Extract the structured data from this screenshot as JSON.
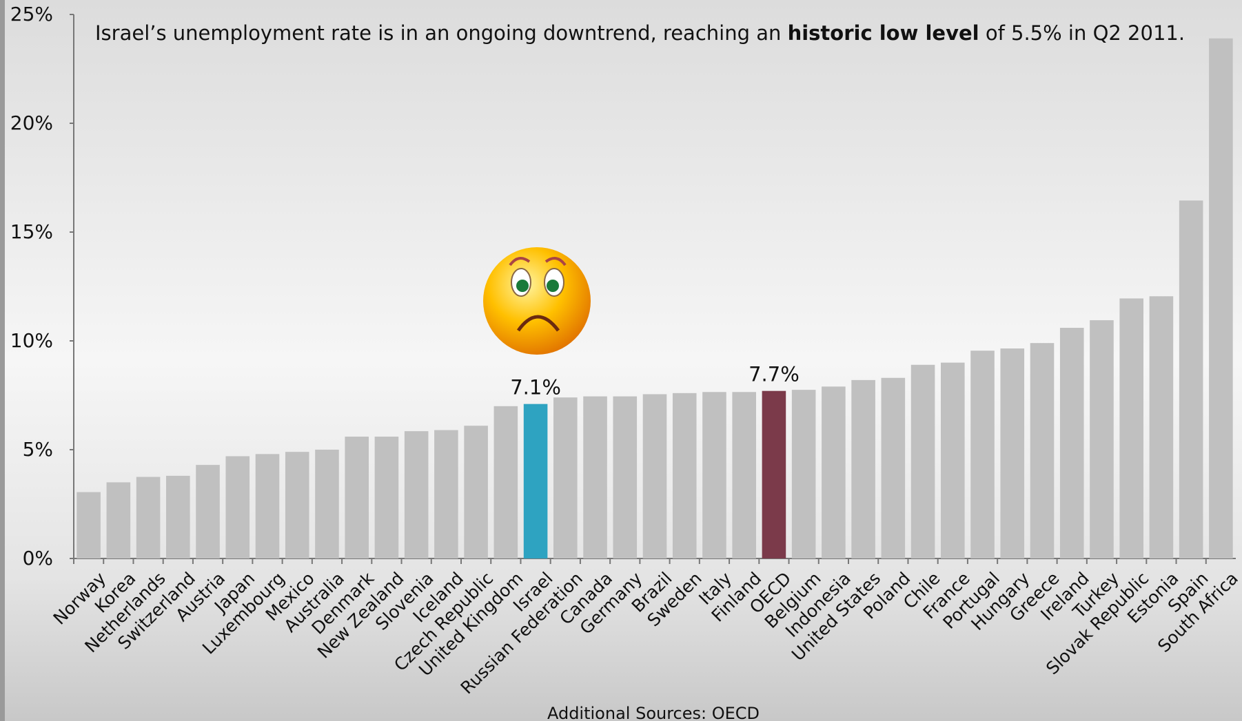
{
  "chart_data": {
    "type": "bar",
    "annotation": [
      "Israel’s unemployment rate is in an ongoing downtrend, reaching an ",
      "historic low level",
      " of 5.5% in Q2 2011."
    ],
    "source": "Additional Sources: OECD",
    "categories": [
      "Norway",
      "Korea",
      "Netherlands",
      "Switzerland",
      "Austria",
      "Japan",
      "Luxembourg",
      "Mexico",
      "Australia",
      "Denmark",
      "New Zealand",
      "Slovenia",
      "Iceland",
      "Czech Republic",
      "United Kingdom",
      "Israel",
      "Russian Federation",
      "Canada",
      "Germany",
      "Brazil",
      "Sweden",
      "Italy",
      "Finland",
      "OECD",
      "Belgium",
      "Indonesia",
      "United States",
      "Poland",
      "Chile",
      "France",
      "Portugal",
      "Hungary",
      "Greece",
      "Ireland",
      "Turkey",
      "Slovak Republic",
      "Estonia",
      "Spain",
      "South Africa"
    ],
    "values": [
      3.05,
      3.5,
      3.75,
      3.8,
      4.3,
      4.7,
      4.8,
      4.9,
      5.0,
      5.6,
      5.6,
      5.85,
      5.9,
      6.1,
      7.0,
      7.1,
      7.4,
      7.45,
      7.45,
      7.55,
      7.6,
      7.65,
      7.65,
      7.7,
      7.75,
      7.9,
      8.2,
      8.3,
      8.9,
      9.0,
      9.55,
      9.65,
      9.9,
      10.6,
      10.95,
      11.95,
      12.05,
      16.45,
      23.9
    ],
    "value_labels": [
      null,
      null,
      null,
      null,
      null,
      null,
      null,
      null,
      null,
      null,
      null,
      null,
      null,
      null,
      null,
      "7.1%",
      null,
      null,
      null,
      null,
      null,
      null,
      null,
      "7.7%",
      null,
      null,
      null,
      null,
      null,
      null,
      null,
      null,
      null,
      null,
      null,
      null,
      null,
      null,
      null
    ],
    "colors": [
      "#c0c0c0",
      "#c0c0c0",
      "#c0c0c0",
      "#c0c0c0",
      "#c0c0c0",
      "#c0c0c0",
      "#c0c0c0",
      "#c0c0c0",
      "#c0c0c0",
      "#c0c0c0",
      "#c0c0c0",
      "#c0c0c0",
      "#c0c0c0",
      "#c0c0c0",
      "#c0c0c0",
      "#2ea3c1",
      "#c0c0c0",
      "#c0c0c0",
      "#c0c0c0",
      "#c0c0c0",
      "#c0c0c0",
      "#c0c0c0",
      "#c0c0c0",
      "#7b3a4a",
      "#c0c0c0",
      "#c0c0c0",
      "#c0c0c0",
      "#c0c0c0",
      "#c0c0c0",
      "#c0c0c0",
      "#c0c0c0",
      "#c0c0c0",
      "#c0c0c0",
      "#c0c0c0",
      "#c0c0c0",
      "#c0c0c0",
      "#c0c0c0",
      "#c0c0c0",
      "#c0c0c0"
    ],
    "ylim": [
      0,
      25
    ],
    "yticks": [
      {
        "value": 0,
        "label": "0%"
      },
      {
        "value": 5,
        "label": "5%"
      },
      {
        "value": 10,
        "label": "10%"
      },
      {
        "value": 15,
        "label": "15%"
      },
      {
        "value": 20,
        "label": "20%"
      },
      {
        "value": 25,
        "label": "25%"
      }
    ],
    "grid": false
  }
}
